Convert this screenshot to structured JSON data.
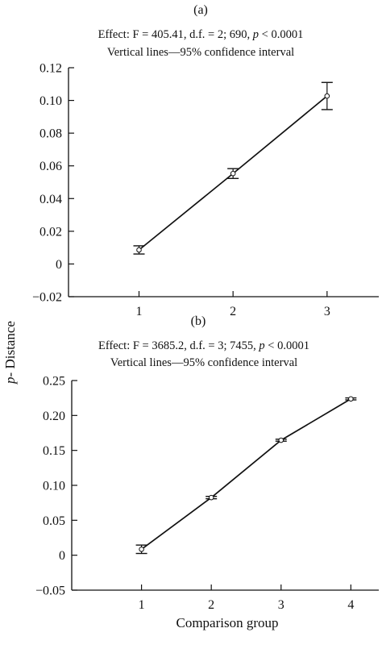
{
  "figure": {
    "ylabel_italic": "p",
    "ylabel_rest": "- Distance",
    "xlabel": "Comparison group"
  },
  "chart_data": [
    {
      "type": "line",
      "panel_label": "(a)",
      "annotation_line1_prefix": "Effect: F = 405.41, d.f. =  2; 690, ",
      "annotation_line1_italic": "p",
      "annotation_line1_suffix": " < 0.0001",
      "annotation_line2": "Vertical lines—95% confidence interval",
      "x": [
        1,
        2,
        3
      ],
      "xticks": [
        "1",
        "2",
        "3"
      ],
      "xlim": [
        0.25,
        3.55
      ],
      "y": [
        0.0086,
        0.0553,
        0.1027
      ],
      "ci_low": [
        0.0061,
        0.0523,
        0.0944
      ],
      "ci_high": [
        0.0111,
        0.0583,
        0.111
      ],
      "ylim": [
        -0.02,
        0.12
      ],
      "yticks": [
        -0.02,
        0,
        0.02,
        0.04,
        0.06,
        0.08,
        0.1,
        0.12
      ],
      "ytick_labels": [
        "−0.02",
        "0",
        "0.02",
        "0.04",
        "0.06",
        "0.08",
        "0.10",
        "0.12"
      ],
      "grid": false
    },
    {
      "type": "line",
      "panel_label": "(b)",
      "annotation_line1_prefix": "Effect: F = 3685.2, d.f. = 3; 7455,  ",
      "annotation_line1_italic": "p",
      "annotation_line1_suffix": " < 0.0001",
      "annotation_line2": "Vertical lines—95% confidence interval",
      "x": [
        1,
        2,
        3,
        4
      ],
      "xticks": [
        "1",
        "2",
        "3",
        "4"
      ],
      "xlim": [
        0.0,
        4.4
      ],
      "y": [
        0.0085,
        0.0825,
        0.1646,
        0.2237
      ],
      "ci_low": [
        0.0025,
        0.0808,
        0.1632,
        0.2223
      ],
      "ci_high": [
        0.0145,
        0.0842,
        0.166,
        0.2251
      ],
      "ylim": [
        -0.05,
        0.25
      ],
      "yticks": [
        -0.05,
        0,
        0.05,
        0.1,
        0.15,
        0.2,
        0.25
      ],
      "ytick_labels": [
        "−0.05",
        "0",
        "0.05",
        "0.10",
        "0.15",
        "0.20",
        "0.25"
      ],
      "grid": false
    }
  ]
}
